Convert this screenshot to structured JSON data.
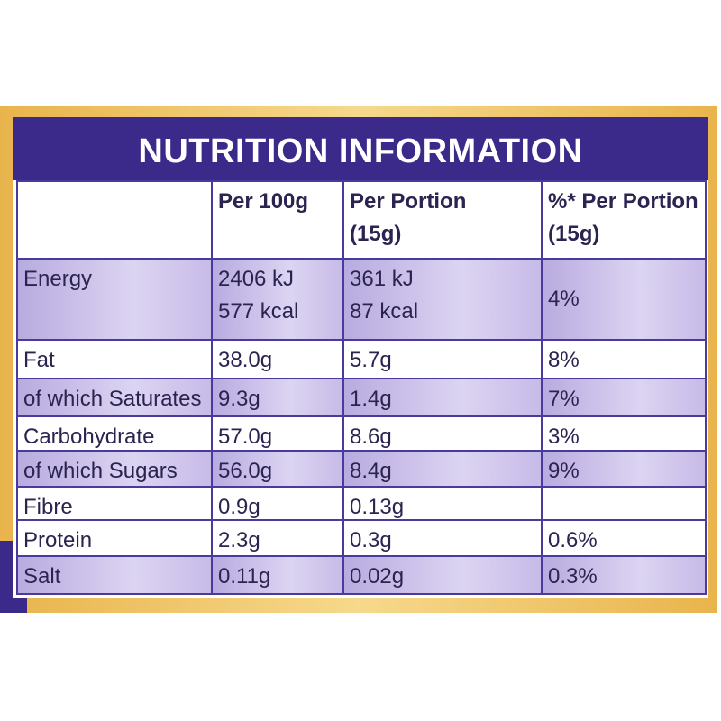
{
  "title": "NUTRITION INFORMATION",
  "header": [
    [
      "Per 100g"
    ],
    [
      "Per Portion",
      "(15g)"
    ],
    [
      "%* Per Portion",
      "(15g)"
    ]
  ],
  "rows": [
    {
      "label": "Energy",
      "per100g": [
        "2406 kJ",
        "577 kcal"
      ],
      "perPortion": [
        "361 kJ",
        "87 kcal"
      ],
      "percent": [
        "4%"
      ]
    },
    {
      "label": "Fat",
      "per100g": [
        "38.0g"
      ],
      "perPortion": [
        "5.7g"
      ],
      "percent": [
        "8%"
      ]
    },
    {
      "label": "of which Saturates",
      "per100g": [
        "9.3g"
      ],
      "perPortion": [
        "1.4g"
      ],
      "percent": [
        "7%"
      ]
    },
    {
      "label": "Carbohydrate",
      "per100g": [
        "57.0g"
      ],
      "perPortion": [
        "8.6g"
      ],
      "percent": [
        "3%"
      ]
    },
    {
      "label": "of which Sugars",
      "per100g": [
        "56.0g"
      ],
      "perPortion": [
        "8.4g"
      ],
      "percent": [
        "9%"
      ]
    },
    {
      "label": "Fibre",
      "per100g": [
        "0.9g"
      ],
      "perPortion": [
        "0.13g"
      ]
    },
    {
      "label": "Protein",
      "per100g": [
        "2.3g"
      ],
      "perPortion": [
        "0.3g"
      ],
      "percent": [
        "0.6%"
      ]
    },
    {
      "label": "Salt",
      "per100g": [
        "0.11g"
      ],
      "perPortion": [
        "0.02g"
      ],
      "percent": [
        "0.3%"
      ]
    }
  ]
}
